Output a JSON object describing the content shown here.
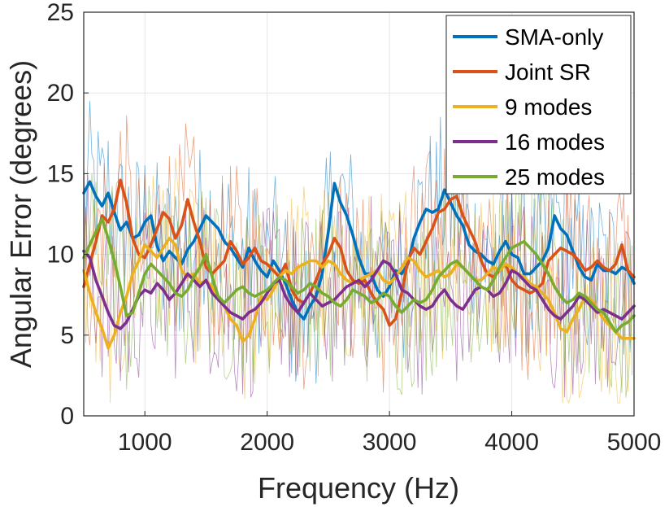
{
  "chart_data": {
    "type": "line",
    "title": "",
    "xlabel": "Frequency (Hz)",
    "ylabel": "Angular Error (degrees)",
    "xlim": [
      500,
      5000
    ],
    "ylim": [
      0,
      25
    ],
    "xticks": [
      1000,
      2000,
      3000,
      4000,
      5000
    ],
    "yticks": [
      0,
      5,
      10,
      15,
      20,
      25
    ],
    "grid": true,
    "legend_position": "top-right",
    "x": [
      500,
      550,
      600,
      650,
      700,
      750,
      800,
      850,
      900,
      950,
      1000,
      1050,
      1100,
      1150,
      1200,
      1250,
      1300,
      1350,
      1400,
      1450,
      1500,
      1550,
      1600,
      1650,
      1700,
      1750,
      1800,
      1850,
      1900,
      1950,
      2000,
      2050,
      2100,
      2150,
      2200,
      2250,
      2300,
      2350,
      2400,
      2450,
      2500,
      2550,
      2600,
      2650,
      2700,
      2750,
      2800,
      2850,
      2900,
      2950,
      3000,
      3050,
      3100,
      3150,
      3200,
      3250,
      3300,
      3350,
      3400,
      3450,
      3500,
      3550,
      3600,
      3650,
      3700,
      3750,
      3800,
      3850,
      3900,
      3950,
      4000,
      4050,
      4100,
      4150,
      4200,
      4250,
      4300,
      4350,
      4400,
      4450,
      4500,
      4550,
      4600,
      4650,
      4700,
      4750,
      4800,
      4850,
      4900,
      4950,
      5000
    ],
    "series": [
      {
        "name": "SMA-only",
        "color": "#0072BD",
        "values": [
          13.8,
          14.5,
          13.6,
          13.0,
          13.8,
          12.6,
          11.5,
          12.0,
          11.0,
          11.2,
          12.0,
          12.4,
          10.5,
          9.6,
          10.2,
          9.8,
          9.4,
          10.3,
          10.8,
          11.6,
          12.4,
          12.0,
          11.6,
          10.8,
          10.4,
          9.8,
          9.2,
          10.4,
          9.6,
          9.0,
          8.6,
          9.6,
          9.0,
          8.2,
          7.2,
          6.4,
          6.0,
          6.8,
          7.4,
          8.8,
          11.4,
          14.4,
          13.2,
          12.4,
          11.2,
          9.8,
          8.8,
          8.8,
          7.8,
          7.4,
          8.0,
          9.0,
          8.8,
          9.4,
          11.0,
          12.0,
          12.8,
          12.6,
          12.8,
          14.0,
          13.2,
          12.4,
          11.8,
          10.6,
          10.2,
          10.0,
          9.6,
          9.4,
          10.2,
          10.8,
          10.0,
          9.8,
          8.8,
          8.8,
          9.2,
          9.6,
          10.4,
          12.4,
          11.6,
          11.2,
          10.2,
          9.2,
          8.6,
          8.4,
          9.4,
          9.0,
          9.0,
          8.8,
          9.2,
          9.0,
          8.2
        ]
      },
      {
        "name": "Joint SR",
        "color": "#D95319",
        "values": [
          8.0,
          9.4,
          10.8,
          12.4,
          12.0,
          12.8,
          14.6,
          13.2,
          11.0,
          10.0,
          9.8,
          10.6,
          11.6,
          12.6,
          12.2,
          11.0,
          11.8,
          13.4,
          12.0,
          10.8,
          9.2,
          8.8,
          9.2,
          9.6,
          10.8,
          10.2,
          9.4,
          9.8,
          10.4,
          9.6,
          9.4,
          9.0,
          8.6,
          9.4,
          7.8,
          7.2,
          7.0,
          7.6,
          8.4,
          9.4,
          10.0,
          11.0,
          10.4,
          9.0,
          8.4,
          8.2,
          8.4,
          7.6,
          7.0,
          6.6,
          5.6,
          6.0,
          7.6,
          9.6,
          10.4,
          10.0,
          10.8,
          11.6,
          12.6,
          12.8,
          13.4,
          13.6,
          12.4,
          11.6,
          10.8,
          9.6,
          8.8,
          8.6,
          9.0,
          9.4,
          8.4,
          8.0,
          7.8,
          7.6,
          7.8,
          8.2,
          9.6,
          10.0,
          10.4,
          10.2,
          10.0,
          9.6,
          9.0,
          9.2,
          9.6,
          9.2,
          9.0,
          9.4,
          10.6,
          9.0,
          8.6
        ]
      },
      {
        "name": "9 modes",
        "color": "#EDB120",
        "values": [
          9.0,
          7.6,
          6.4,
          5.4,
          4.2,
          5.0,
          6.4,
          7.4,
          8.8,
          9.6,
          10.6,
          10.2,
          9.8,
          10.4,
          11.0,
          10.6,
          9.0,
          8.6,
          8.8,
          8.2,
          8.4,
          8.0,
          7.2,
          6.8,
          6.0,
          5.6,
          4.6,
          5.0,
          6.0,
          7.4,
          7.2,
          7.8,
          8.6,
          9.0,
          8.8,
          9.2,
          9.4,
          9.6,
          9.6,
          9.2,
          9.6,
          9.4,
          8.8,
          8.4,
          8.2,
          8.4,
          8.6,
          8.8,
          9.0,
          8.4,
          8.2,
          8.6,
          9.2,
          9.8,
          9.6,
          9.0,
          8.6,
          8.8,
          9.0,
          8.6,
          8.8,
          9.4,
          9.2,
          8.8,
          8.4,
          8.4,
          8.8,
          9.2,
          9.0,
          9.4,
          9.2,
          8.8,
          8.6,
          8.2,
          8.0,
          7.6,
          7.2,
          6.4,
          5.4,
          5.2,
          6.0,
          6.6,
          7.4,
          7.2,
          6.6,
          6.0,
          5.6,
          5.2,
          4.8,
          4.8,
          4.8
        ]
      },
      {
        "name": "16 modes",
        "color": "#7E2F8E",
        "values": [
          10.2,
          9.8,
          8.4,
          7.4,
          6.4,
          5.6,
          5.4,
          5.8,
          6.6,
          7.4,
          7.8,
          7.6,
          8.2,
          7.8,
          7.2,
          7.6,
          8.2,
          8.8,
          8.4,
          8.0,
          8.4,
          7.6,
          7.2,
          6.8,
          6.4,
          6.2,
          6.0,
          6.4,
          6.6,
          7.0,
          7.6,
          8.2,
          8.4,
          7.4,
          6.8,
          6.4,
          7.0,
          7.6,
          7.2,
          6.8,
          7.0,
          7.2,
          7.6,
          8.0,
          8.2,
          8.4,
          8.0,
          8.4,
          9.0,
          9.6,
          9.4,
          8.8,
          7.8,
          7.6,
          7.2,
          6.8,
          6.6,
          6.8,
          7.4,
          7.8,
          7.2,
          6.8,
          6.6,
          7.2,
          7.8,
          8.0,
          7.8,
          7.4,
          7.6,
          8.2,
          9.0,
          8.8,
          8.4,
          8.0,
          7.8,
          7.2,
          6.6,
          6.2,
          6.0,
          6.4,
          6.8,
          7.4,
          7.2,
          6.8,
          6.4,
          6.6,
          6.4,
          6.2,
          6.0,
          6.4,
          6.8
        ]
      },
      {
        "name": "25 modes",
        "color": "#77AC30",
        "values": [
          9.8,
          10.6,
          11.4,
          12.2,
          11.0,
          9.6,
          8.0,
          6.2,
          6.4,
          7.6,
          8.8,
          9.4,
          9.0,
          8.6,
          8.2,
          7.6,
          7.4,
          7.8,
          8.6,
          9.2,
          10.0,
          8.6,
          7.4,
          7.0,
          7.4,
          7.8,
          8.0,
          7.6,
          7.4,
          7.6,
          7.8,
          8.2,
          8.6,
          8.4,
          8.0,
          7.6,
          7.8,
          8.2,
          8.0,
          7.6,
          7.4,
          7.0,
          6.8,
          7.2,
          7.8,
          7.6,
          7.4,
          7.0,
          7.2,
          7.6,
          7.4,
          6.8,
          6.4,
          6.8,
          7.2,
          7.0,
          7.2,
          7.8,
          8.6,
          9.0,
          9.4,
          9.6,
          9.2,
          8.8,
          8.4,
          8.0,
          7.8,
          8.4,
          9.2,
          9.8,
          10.4,
          10.6,
          10.8,
          10.4,
          10.0,
          9.4,
          8.8,
          8.0,
          7.4,
          7.0,
          7.2,
          7.6,
          7.4,
          7.0,
          6.6,
          6.4,
          5.8,
          5.2,
          5.6,
          5.8,
          6.2
        ]
      }
    ]
  }
}
